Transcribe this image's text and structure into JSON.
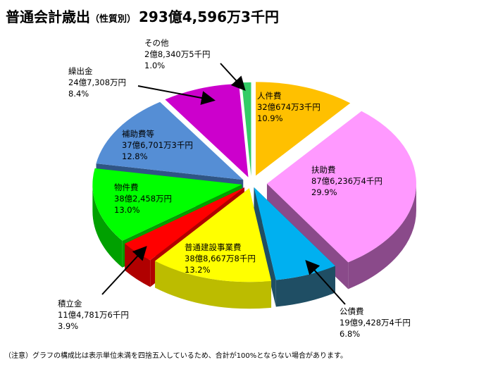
{
  "title": {
    "main": "普通会計歳出",
    "sub": "（性質別）",
    "total": "293億4,596万3千円"
  },
  "note": "（注意）グラフの構成比は表示単位未満を四捨五入しているため、合計が100%とならない場合があります。",
  "chart_data": {
    "type": "pie",
    "title": "普通会計歳出（性質別） 293億4,596万3千円",
    "series": [
      {
        "values": [
          10.9,
          29.9,
          6.8,
          13.2,
          3.9,
          13.0,
          12.8,
          8.4,
          1.0
        ]
      }
    ],
    "slices": [
      {
        "label": "人件費",
        "amount": "32億674万3千円",
        "percent": "10.9%",
        "value": 10.9,
        "color": "#ffc000",
        "side": "#b88a00"
      },
      {
        "label": "扶助費",
        "amount": "87億6,236万4千円",
        "percent": "29.9%",
        "value": 29.9,
        "color": "#ff99ff",
        "side": "#8a4a8a"
      },
      {
        "label": "公債費",
        "amount": "19億9,428万4千円",
        "percent": "6.8%",
        "value": 6.8,
        "color": "#00b0f0",
        "side": "#1f4e64"
      },
      {
        "label": "普通建設事業費",
        "amount": "38億8,667万8千円",
        "percent": "13.2%",
        "value": 13.2,
        "color": "#ffff00",
        "side": "#bcbc00"
      },
      {
        "label": "積立金",
        "amount": "11億4,781万6千円",
        "percent": "3.9%",
        "value": 3.9,
        "color": "#ff0000",
        "side": "#b00000"
      },
      {
        "label": "物件費",
        "amount": "38億2,458万円",
        "percent": "13.0%",
        "value": 13.0,
        "color": "#00ff00",
        "side": "#00a000"
      },
      {
        "label": "補助費等",
        "amount": "37億6,701万3千円",
        "percent": "12.8%",
        "value": 12.8,
        "color": "#558ed5",
        "side": "#2f5585"
      },
      {
        "label": "繰出金",
        "amount": "24億7,308万円",
        "percent": "8.4%",
        "value": 8.4,
        "color": "#cc00cc",
        "side": "#800080"
      },
      {
        "label": "その他",
        "amount": "2億8,340万5千円",
        "percent": "1.0%",
        "value": 1.0,
        "color": "#33cc66",
        "side": "#1f8040"
      }
    ],
    "legend": "none",
    "start_angle_deg": -90,
    "direction": "clockwise"
  }
}
